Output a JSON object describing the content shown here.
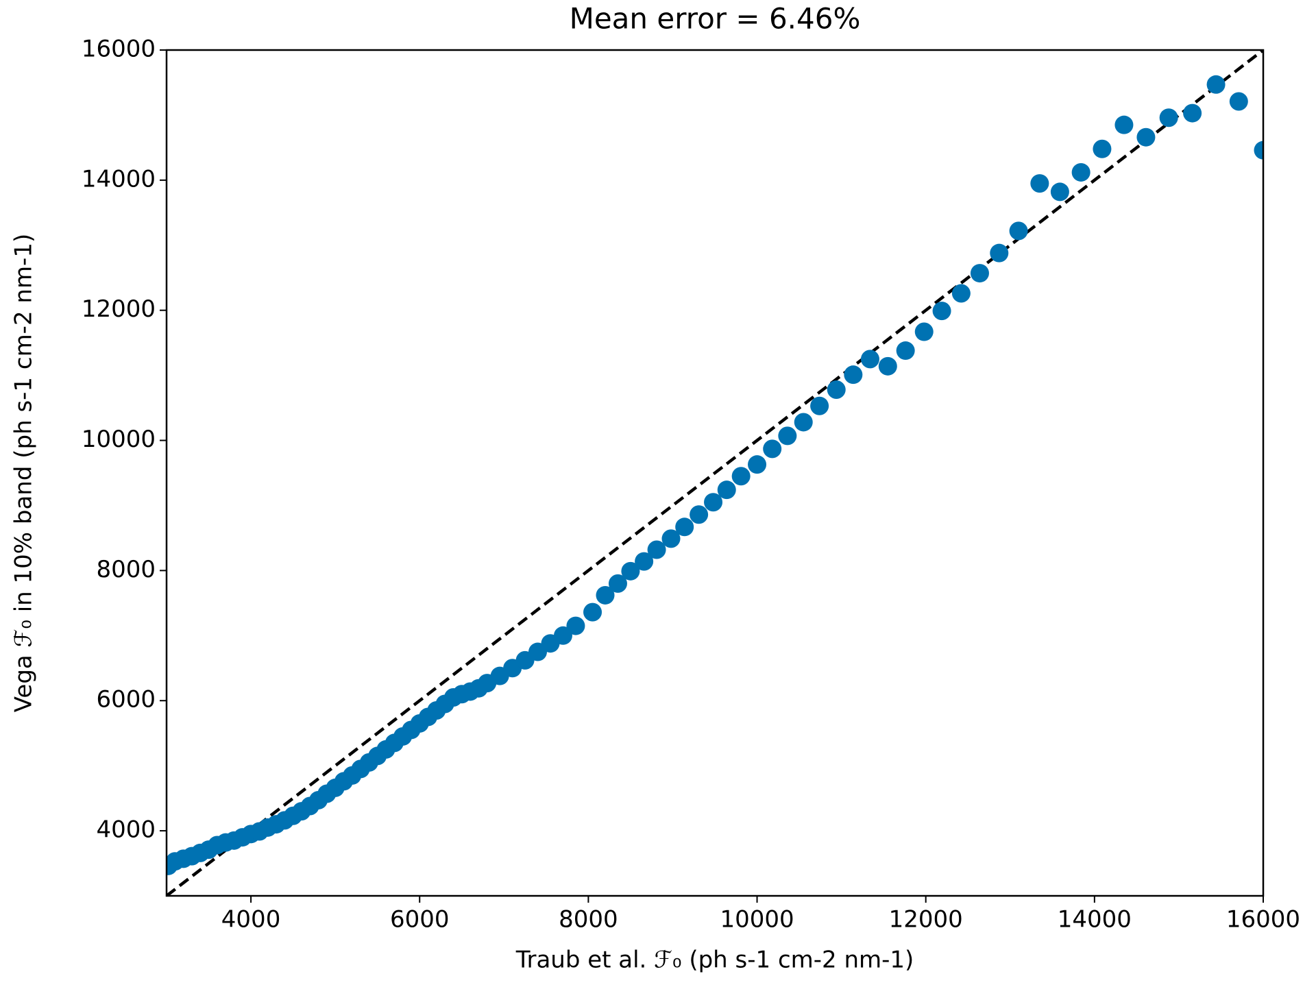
{
  "chart_data": {
    "type": "scatter",
    "title": "Mean error = 6.46%",
    "x_label": "Traub et al. ℱ₀ (ph s-1 cm-2 nm-1)",
    "y_label": "Vega ℱ₀ in 10% band (ph s-1 cm-2 nm-1)",
    "color": "#0072b2",
    "x": [
      3020,
      3100,
      3200,
      3300,
      3400,
      3500,
      3600,
      3700,
      3800,
      3900,
      4000,
      4100,
      4200,
      4300,
      4400,
      4500,
      4600,
      4700,
      4800,
      4900,
      5000,
      5100,
      5200,
      5300,
      5400,
      5500,
      5600,
      5700,
      5800,
      5900,
      6000,
      6100,
      6200,
      6300,
      6400,
      6500,
      6600,
      6700,
      6800,
      6950,
      7100,
      7250,
      7400,
      7550,
      7700,
      7850,
      8050,
      8200,
      8350,
      8500,
      8660,
      8810,
      8980,
      9140,
      9310,
      9480,
      9640,
      9810,
      10000,
      10180,
      10360,
      10550,
      10740,
      10940,
      11140,
      11340,
      11550,
      11760,
      11980,
      12190,
      12420,
      12640,
      12870,
      13100,
      13350,
      13590,
      13840,
      14090,
      14350,
      14610,
      14880,
      15160,
      15440,
      15710,
      16000
    ],
    "values": [
      3460,
      3530,
      3570,
      3610,
      3660,
      3710,
      3780,
      3820,
      3850,
      3900,
      3950,
      3990,
      4050,
      4100,
      4160,
      4230,
      4300,
      4380,
      4470,
      4570,
      4660,
      4760,
      4850,
      4950,
      5050,
      5150,
      5250,
      5350,
      5450,
      5550,
      5650,
      5750,
      5850,
      5950,
      6050,
      6100,
      6140,
      6190,
      6270,
      6380,
      6500,
      6620,
      6750,
      6880,
      7000,
      7150,
      7360,
      7620,
      7800,
      7990,
      8140,
      8320,
      8490,
      8670,
      8860,
      9050,
      9240,
      9450,
      9630,
      9870,
      10070,
      10280,
      10530,
      10780,
      11010,
      11250,
      11140,
      11380,
      11670,
      11990,
      12260,
      12570,
      12880,
      13220,
      13950,
      13820,
      14120,
      14480,
      14850,
      14660,
      14960,
      15030,
      15470,
      15210,
      14460
    ],
    "xlim": [
      3000,
      16000
    ],
    "ylim": [
      3000,
      16000
    ],
    "xticks": [
      4000,
      6000,
      8000,
      10000,
      12000,
      14000,
      16000
    ],
    "yticks": [
      4000,
      6000,
      8000,
      10000,
      12000,
      14000,
      16000
    ],
    "identity_line": true,
    "grid": false
  }
}
